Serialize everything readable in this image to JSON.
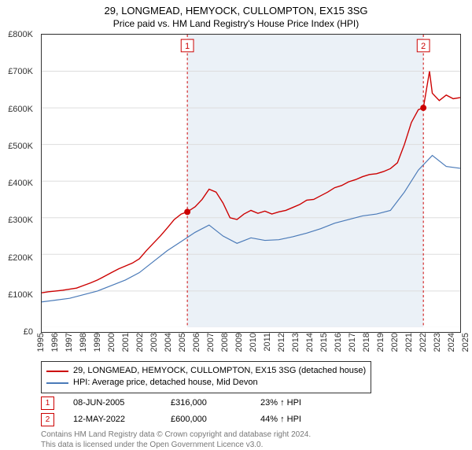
{
  "title": "29, LONGMEAD, HEMYOCK, CULLOMPTON, EX15 3SG",
  "subtitle": "Price paid vs. HM Land Registry's House Price Index (HPI)",
  "chart": {
    "type": "line",
    "background_color": "#ffffff",
    "grid_color": "#dddddd",
    "plot_border_color": "#333333",
    "shade_band": {
      "x_start": 2005.44,
      "x_end": 2022.36,
      "color": "#e8eef6"
    },
    "ylim": [
      0,
      800000
    ],
    "ytick_step": 100000,
    "yticks": [
      "£0",
      "£100K",
      "£200K",
      "£300K",
      "£400K",
      "£500K",
      "£600K",
      "£700K",
      "£800K"
    ],
    "xlim": [
      1995,
      2025
    ],
    "xticks": [
      1995,
      1996,
      1997,
      1998,
      1999,
      2000,
      2001,
      2002,
      2003,
      2004,
      2005,
      2006,
      2007,
      2008,
      2009,
      2010,
      2011,
      2012,
      2013,
      2014,
      2015,
      2016,
      2017,
      2018,
      2019,
      2020,
      2021,
      2022,
      2023,
      2024,
      2025
    ],
    "series": [
      {
        "name": "29, LONGMEAD, HEMYOCK, CULLOMPTON, EX15 3SG (detached house)",
        "color": "#cc0000",
        "line_width": 1.4,
        "x": [
          1995,
          1995.5,
          1996,
          1996.5,
          1997,
          1997.5,
          1998,
          1998.5,
          1999,
          1999.5,
          2000,
          2000.5,
          2001,
          2001.5,
          2002,
          2002.5,
          2003,
          2003.5,
          2004,
          2004.5,
          2005,
          2005.44,
          2006,
          2006.5,
          2007,
          2007.5,
          2008,
          2008.5,
          2009,
          2009.5,
          2010,
          2010.5,
          2011,
          2011.5,
          2012,
          2012.5,
          2013,
          2013.5,
          2014,
          2014.5,
          2015,
          2015.5,
          2016,
          2016.5,
          2017,
          2017.5,
          2018,
          2018.5,
          2019,
          2019.5,
          2020,
          2020.5,
          2021,
          2021.5,
          2022,
          2022.36,
          2022.8,
          2023,
          2023.5,
          2024,
          2024.5,
          2025
        ],
        "y": [
          95000,
          98000,
          100000,
          102000,
          105000,
          108000,
          115000,
          122000,
          130000,
          140000,
          150000,
          160000,
          168000,
          176000,
          188000,
          210000,
          230000,
          250000,
          272000,
          295000,
          310000,
          316000,
          330000,
          350000,
          378000,
          370000,
          340000,
          300000,
          295000,
          310000,
          320000,
          312000,
          318000,
          310000,
          316000,
          320000,
          328000,
          336000,
          348000,
          350000,
          360000,
          370000,
          382000,
          388000,
          398000,
          404000,
          412000,
          418000,
          420000,
          426000,
          434000,
          450000,
          500000,
          560000,
          595000,
          600000,
          700000,
          640000,
          620000,
          635000,
          625000,
          628000
        ]
      },
      {
        "name": "HPI: Average price, detached house, Mid Devon",
        "color": "#4a7ab8",
        "line_width": 1.2,
        "x": [
          1995,
          1996,
          1997,
          1998,
          1999,
          2000,
          2001,
          2002,
          2003,
          2004,
          2005,
          2006,
          2007,
          2008,
          2009,
          2010,
          2011,
          2012,
          2013,
          2014,
          2015,
          2016,
          2017,
          2018,
          2019,
          2020,
          2021,
          2022,
          2023,
          2024,
          2025
        ],
        "y": [
          70000,
          75000,
          80000,
          90000,
          100000,
          115000,
          130000,
          150000,
          180000,
          210000,
          235000,
          260000,
          280000,
          250000,
          230000,
          245000,
          238000,
          240000,
          248000,
          258000,
          270000,
          285000,
          295000,
          305000,
          310000,
          320000,
          370000,
          430000,
          470000,
          440000,
          435000
        ]
      }
    ],
    "markers": [
      {
        "n": "1",
        "x": 2005.44,
        "y": 316000,
        "box_x": 2005.44,
        "box_y": 770000
      },
      {
        "n": "2",
        "x": 2022.36,
        "y": 600000,
        "box_x": 2022.36,
        "box_y": 770000
      }
    ],
    "tick_fontsize": 11,
    "title_fontsize": 13
  },
  "legend": [
    {
      "color": "#cc0000",
      "label": "29, LONGMEAD, HEMYOCK, CULLOMPTON, EX15 3SG (detached house)"
    },
    {
      "color": "#4a7ab8",
      "label": "HPI: Average price, detached house, Mid Devon"
    }
  ],
  "points": [
    {
      "n": "1",
      "date": "08-JUN-2005",
      "price": "£316,000",
      "change": "23% ↑ HPI"
    },
    {
      "n": "2",
      "date": "12-MAY-2022",
      "price": "£600,000",
      "change": "44% ↑ HPI"
    }
  ],
  "footer_line1": "Contains HM Land Registry data © Crown copyright and database right 2024.",
  "footer_line2": "This data is licensed under the Open Government Licence v3.0."
}
